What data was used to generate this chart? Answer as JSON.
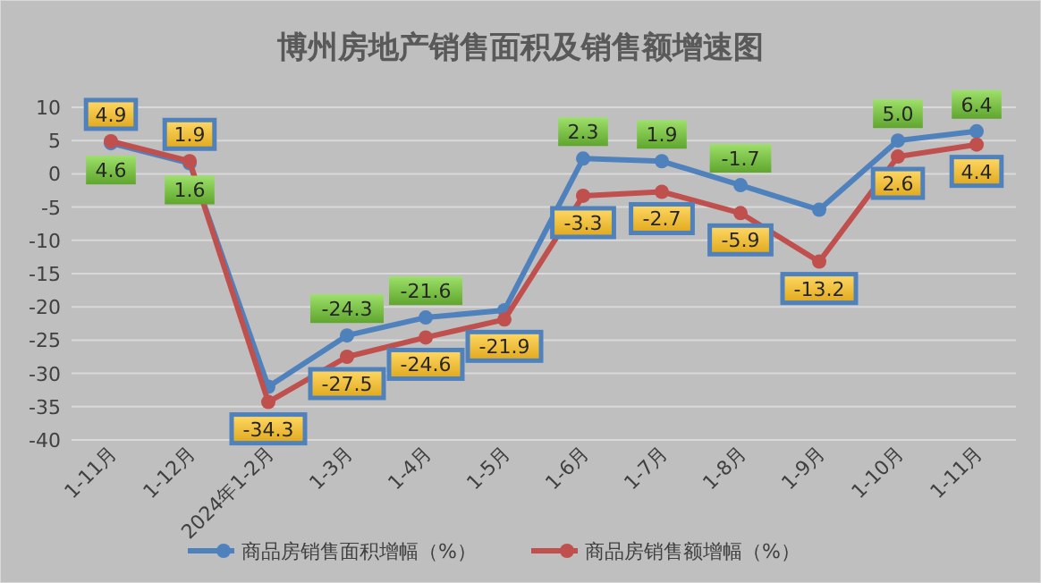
{
  "chart_data": {
    "type": "line",
    "title": "博州房地产销售面积及销售额增速图",
    "categories": [
      "1-11月",
      "1-12月",
      "2024年1-2月",
      "1-3月",
      "1-4月",
      "1-5月",
      "1-6月",
      "1-7月",
      "1-8月",
      "1-9月",
      "1-10月",
      "1-11月"
    ],
    "series": [
      {
        "name": "商品房销售面积增幅（%）",
        "color": "#4f81bd",
        "values": [
          4.6,
          1.6,
          -32,
          -24.3,
          -21.6,
          -20.5,
          2.3,
          1.9,
          -1.7,
          -5.4,
          5.0,
          6.4
        ],
        "value_labels": [
          "4.6",
          "1.6",
          null,
          "-24.3",
          "-21.6",
          null,
          "2.3",
          "1.9",
          "-1.7",
          null,
          "5.0",
          "6.4"
        ]
      },
      {
        "name": "商品房销售额增幅（%）",
        "color": "#c0504d",
        "values": [
          4.9,
          1.9,
          -34.3,
          -27.5,
          -24.6,
          -21.9,
          -3.3,
          -2.7,
          -5.9,
          -13.2,
          2.6,
          4.4
        ],
        "value_labels": [
          "4.9",
          "1.9",
          "-34.3",
          "-27.5",
          "-24.6",
          "-21.9",
          "-3.3",
          "-2.7",
          "-5.9",
          "-13.2",
          "2.6",
          "4.4"
        ]
      }
    ],
    "ylim": [
      -40,
      10
    ],
    "yticks": [
      -40,
      -35,
      -30,
      -25,
      -20,
      -15,
      -10,
      -5,
      0,
      5,
      10
    ],
    "grid": "y",
    "legend": "bottom",
    "marker": "circle",
    "line_style": "solid"
  }
}
